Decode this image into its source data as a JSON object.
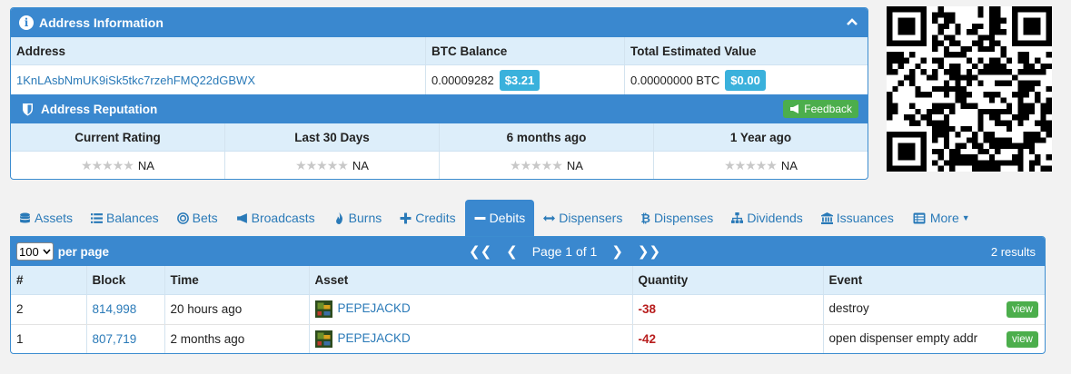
{
  "address_panel": {
    "title": "Address Information",
    "headers": {
      "address": "Address",
      "btc_balance": "BTC Balance",
      "total_value": "Total Estimated Value"
    },
    "address": "1KnLAsbNmUK9iSk5tkc7rzehFMQ22dGBWX",
    "btc_balance": "0.00009282",
    "btc_balance_usd": "$3.21",
    "total_value": "0.00000000 BTC",
    "total_value_usd": "$0.00"
  },
  "reputation": {
    "title": "Address Reputation",
    "feedback_label": "Feedback",
    "columns": [
      {
        "label": "Current Rating",
        "value": "NA"
      },
      {
        "label": "Last 30 Days",
        "value": "NA"
      },
      {
        "label": "6 months ago",
        "value": "NA"
      },
      {
        "label": "1 Year ago",
        "value": "NA"
      }
    ],
    "stars": "★★★★★"
  },
  "tabs": [
    {
      "label": "Assets",
      "icon": "database-icon"
    },
    {
      "label": "Balances",
      "icon": "list-icon"
    },
    {
      "label": "Bets",
      "icon": "target-icon"
    },
    {
      "label": "Broadcasts",
      "icon": "bullhorn-icon"
    },
    {
      "label": "Burns",
      "icon": "fire-icon"
    },
    {
      "label": "Credits",
      "icon": "plus-icon"
    },
    {
      "label": "Debits",
      "icon": "minus-icon",
      "active": true
    },
    {
      "label": "Dispensers",
      "icon": "arrows-h-icon"
    },
    {
      "label": "Dispenses",
      "icon": "bitcoin-icon"
    },
    {
      "label": "Dividends",
      "icon": "sitemap-icon"
    },
    {
      "label": "Issuances",
      "icon": "bank-icon"
    },
    {
      "label": "More",
      "icon": "list-alt-icon"
    }
  ],
  "table": {
    "per_page_value": "100",
    "per_page_label": "per page",
    "page_label": "Page 1 of 1",
    "results": "2 results",
    "first": "❮❮",
    "prev": "❮",
    "next": "❯",
    "last": "❯❯",
    "columns": [
      "#",
      "Block",
      "Time",
      "Asset",
      "Quantity",
      "Event"
    ],
    "view_label": "view",
    "rows": [
      {
        "num": "2",
        "block": "814,998",
        "time": "20 hours ago",
        "asset": "PEPEJACKD",
        "quantity": "-38",
        "event": "destroy"
      },
      {
        "num": "1",
        "block": "807,719",
        "time": "2 months ago",
        "asset": "PEPEJACKD",
        "quantity": "-42",
        "event": "open dispenser empty addr"
      }
    ]
  }
}
